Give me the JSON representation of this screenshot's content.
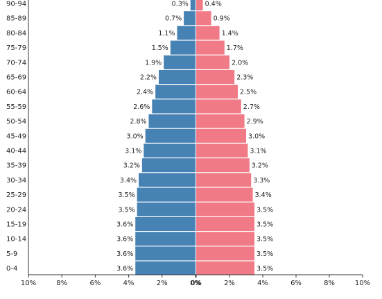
{
  "chart_data": {
    "type": "bar",
    "orientation": "horizontal",
    "subtype": "population-pyramid",
    "categories": [
      "0-4",
      "5-9",
      "10-14",
      "15-19",
      "20-24",
      "25-29",
      "30-34",
      "35-39",
      "40-44",
      "45-49",
      "50-54",
      "55-59",
      "60-64",
      "65-69",
      "70-74",
      "75-79",
      "80-84",
      "85-89",
      "90-94"
    ],
    "series": [
      {
        "side": "left",
        "color": "#4682b4",
        "values": [
          3.6,
          3.6,
          3.6,
          3.6,
          3.5,
          3.5,
          3.4,
          3.2,
          3.1,
          3.0,
          2.8,
          2.6,
          2.4,
          2.2,
          1.9,
          1.5,
          1.1,
          0.7,
          0.3
        ],
        "labels": [
          "3.6%",
          "3.6%",
          "3.6%",
          "3.6%",
          "3.5%",
          "3.5%",
          "3.4%",
          "3.2%",
          "3.1%",
          "3.0%",
          "2.8%",
          "2.6%",
          "2.4%",
          "2.2%",
          "1.9%",
          "1.5%",
          "1.1%",
          "0.7%",
          "0.3%"
        ]
      },
      {
        "side": "right",
        "color": "#f07b87",
        "values": [
          3.5,
          3.5,
          3.5,
          3.5,
          3.5,
          3.4,
          3.3,
          3.2,
          3.1,
          3.0,
          2.9,
          2.7,
          2.5,
          2.3,
          2.0,
          1.7,
          1.4,
          0.9,
          0.4
        ],
        "labels": [
          "3.5%",
          "3.5%",
          "3.5%",
          "3.5%",
          "3.5%",
          "3.4%",
          "3.3%",
          "3.2%",
          "3.1%",
          "3.0%",
          "2.9%",
          "2.7%",
          "2.5%",
          "2.3%",
          "2.0%",
          "1.7%",
          "1.4%",
          "0.9%",
          "0.4%"
        ]
      }
    ],
    "xlim": [
      -10,
      10
    ],
    "x_ticks": [
      -10,
      -8,
      -6,
      -4,
      -2,
      0,
      2,
      4,
      6,
      8,
      10
    ],
    "left_tick_labels": [
      "10%",
      "8%",
      "6%",
      "4%",
      "2%",
      "0%"
    ],
    "right_tick_labels": [
      "0%",
      "2%",
      "4%",
      "6%",
      "8%",
      "10%"
    ],
    "grid": false
  }
}
